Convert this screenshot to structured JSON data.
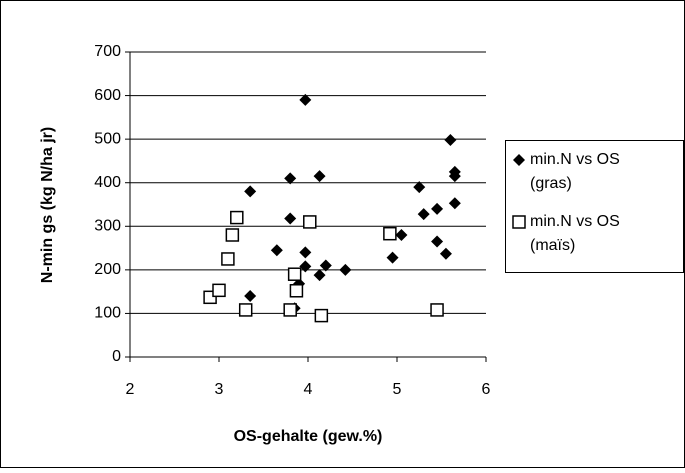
{
  "chart_data": {
    "type": "scatter",
    "x_label": "OS-gehalte (gew.%)",
    "y_label": "N-min gs (kg N/ha jr)",
    "xlim": [
      2,
      6
    ],
    "xticks": [
      2,
      3,
      4,
      5,
      6
    ],
    "ylim": [
      0,
      700
    ],
    "yticks": [
      0,
      100,
      200,
      300,
      400,
      500,
      600,
      700
    ],
    "grid": true,
    "legend": "right",
    "series": [
      {
        "name": "min.N vs OS (gras)",
        "marker": "diamond",
        "color": "#000000",
        "x": [
          3.35,
          3.35,
          3.65,
          3.8,
          3.8,
          3.85,
          3.9,
          3.97,
          3.97,
          3.97,
          4.13,
          4.13,
          4.2,
          4.42,
          4.95,
          5.05,
          5.25,
          5.3,
          5.45,
          5.45,
          5.55,
          5.6,
          5.65,
          5.65,
          5.65
        ],
        "values": [
          380,
          140,
          245,
          410,
          318,
          112,
          168,
          590,
          240,
          208,
          415,
          188,
          210,
          200,
          228,
          280,
          390,
          328,
          340,
          265,
          237,
          498,
          425,
          415,
          353
        ]
      },
      {
        "name": "min.N vs OS (maïs)",
        "marker": "square",
        "color": "#000000",
        "x": [
          2.9,
          3.0,
          3.1,
          3.15,
          3.2,
          3.3,
          3.8,
          3.85,
          3.87,
          4.02,
          4.15,
          4.92,
          5.45
        ],
        "values": [
          137,
          153,
          225,
          280,
          320,
          108,
          108,
          190,
          152,
          310,
          95,
          283,
          108
        ]
      }
    ]
  }
}
